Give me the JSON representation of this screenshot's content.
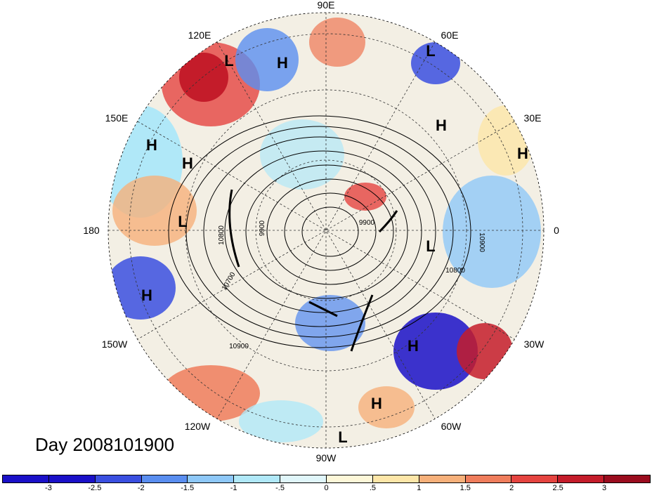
{
  "map": {
    "projection": "north-polar-stereographic",
    "longitude_labels": [
      "90E",
      "120E",
      "60E",
      "150E",
      "30E",
      "180",
      "0",
      "150W",
      "30W",
      "120W",
      "60W",
      "90W"
    ],
    "pressure_systems": [
      {
        "type": "L",
        "label": "L"
      },
      {
        "type": "H",
        "label": "H"
      },
      {
        "type": "L",
        "label": "L"
      },
      {
        "type": "H",
        "label": "H"
      },
      {
        "type": "H",
        "label": "H"
      },
      {
        "type": "H",
        "label": "H"
      },
      {
        "type": "H",
        "label": "H"
      },
      {
        "type": "L",
        "label": "L"
      },
      {
        "type": "L",
        "label": "L"
      },
      {
        "type": "H",
        "label": "H"
      },
      {
        "type": "H",
        "label": "H"
      },
      {
        "type": "H",
        "label": "H"
      },
      {
        "type": "L",
        "label": "L"
      }
    ],
    "contour_labels": [
      "10800",
      "9900",
      "10700",
      "9900",
      "10900",
      "10800",
      "10900"
    ],
    "title": "Day 2008101900"
  },
  "colorbar": {
    "colors": [
      "#1a10c8",
      "#3a4fe0",
      "#5a8ef0",
      "#8ec8f8",
      "#b0e8f8",
      "#e0f6fa",
      "#fdf7d8",
      "#fde6a8",
      "#f6b07a",
      "#ef7d5c",
      "#e54440",
      "#c41c2a",
      "#9a0c1e"
    ],
    "tick_labels": [
      "-3",
      "-2.5",
      "-2",
      "-1.5",
      "-1",
      "-.5",
      "0",
      ".5",
      "1",
      "1.5",
      "2",
      "2.5",
      "3"
    ]
  }
}
